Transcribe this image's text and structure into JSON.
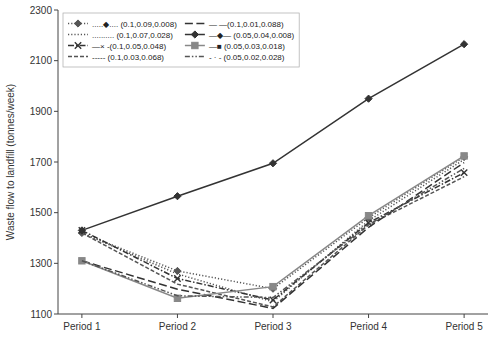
{
  "chart_data": {
    "type": "line",
    "categories": [
      "Period 1",
      "Period 2",
      "Period 3",
      "Period 4",
      "Period 5"
    ],
    "series": [
      {
        "name": ".....◆.... (0.1,0.09,0.008)",
        "values": [
          1420,
          1270,
          1200,
          1480,
          1720
        ],
        "color": "#555555",
        "line_style": "dotted",
        "marker": "diamond"
      },
      {
        "name": ".......... (0.1,0.07,0.028)",
        "values": [
          1420,
          1258,
          1148,
          1468,
          1710
        ],
        "color": "#555555",
        "line_style": "dotted"
      },
      {
        "name": "—× -(0.1,0.05,0.048)",
        "values": [
          1430,
          1240,
          1155,
          1460,
          1658
        ],
        "color": "#333333",
        "line_style": "dashdot",
        "marker": "x"
      },
      {
        "name": "----- (0.1,0.03,0.068)",
        "values": [
          1420,
          1218,
          1128,
          1452,
          1642
        ],
        "color": "#555555",
        "line_style": "dashed"
      },
      {
        "name": "— —(0.1,0.01,0.088)",
        "values": [
          1310,
          1198,
          1122,
          1442,
          1698
        ],
        "color": "#333333",
        "line_style": "longdash"
      },
      {
        "name": "—◆— (0.05,0.04,0.008)",
        "values": [
          1430,
          1565,
          1695,
          1950,
          2165
        ],
        "color": "#333333",
        "line_style": "solid",
        "marker": "diamond"
      },
      {
        "name": "—■  (0.05,0.03,0.018)",
        "values": [
          1310,
          1162,
          1208,
          1488,
          1724
        ],
        "color": "#888888",
        "line_style": "solid",
        "marker": "square"
      },
      {
        "name": "- · - (0.05,0.02,0.028)",
        "values": [
          1310,
          1172,
          1165,
          1452,
          1675
        ],
        "color": "#555555",
        "line_style": "dashdotdot"
      }
    ],
    "ylabel": "Waste flow to landfill (tonnes/week)",
    "ylim": [
      1100,
      2300
    ],
    "yticks": [
      1100,
      1300,
      1500,
      1700,
      1900,
      2100,
      2300
    ],
    "grid": false,
    "legend": "upper left"
  }
}
